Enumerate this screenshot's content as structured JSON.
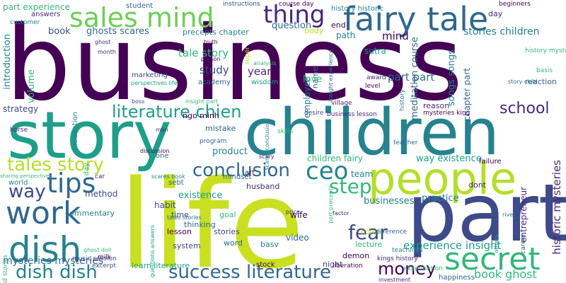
{
  "palette": {
    "purple": "#440154",
    "deep": "#482878",
    "indigo": "#3e4a89",
    "blue": "#31688e",
    "teal": "#26828e",
    "green": "#1f9e89",
    "emerald": "#35b779",
    "lime": "#6ece58",
    "yellowgreen": "#b5de2b",
    "yellow": "#fde725"
  },
  "words": {
    "business": "business",
    "story": "story",
    "children": "children",
    "life": "life",
    "part": "part",
    "people": "people",
    "fairy_tale": "fairy tale",
    "sales_mind": "sales mind",
    "thing": "thing",
    "dish": "dish",
    "work": "work",
    "secret": "secret",
    "tips": "tips",
    "way": "way",
    "tales_story": "tales story",
    "literature_chien": "literature chien",
    "conclusion": "conclusion",
    "ceo": "ceo",
    "step": "step",
    "fear": "fear",
    "money": "money",
    "success_literature": "success literature",
    "dish_dish": "dish dish",
    "school": "school",
    "book_ghost": "book ghost",
    "experience_insight": "experience insight",
    "stories_children": "stories children",
    "mysteries_mysteries": "mysteries mysteries",
    "historic_mysteries": "historic mysteries",
    "part_experience": "part experience",
    "question": "question",
    "book": "book",
    "ghosts_scares": "ghosts scares",
    "precepts_chapter": "precepts chapter",
    "tale_story": "tale story",
    "minh_academy": "minh academy",
    "study": "study",
    "year": "year",
    "strategy": "strategy",
    "introduction": "introduction",
    "volume": "volume",
    "history_historic": "history historic",
    "student": "student",
    "answers": "answers",
    "customer": "customer",
    "instructions": "instructions",
    "course_day": "course day",
    "day": "day",
    "beginners": "beginners",
    "end": "end",
    "path": "path",
    "sutra": "sutra",
    "body": "body",
    "meditation_course": "meditation course",
    "mind": "mind",
    "songs_songs": "songs songs",
    "chapter_part": "chapter part",
    "history_mysteries": "history mysteries",
    "employee": "employee",
    "name": "name",
    "love": "love",
    "part_part": "part part",
    "reaction": "reaction",
    "basis": "basis",
    "story_child": "story child",
    "marketing": "marketing",
    "academy": "academy",
    "wisdom": "wisdom",
    "insight_part": "insight part",
    "reason": "reason",
    "mysteries_king": "mysteries king",
    "desire": "desire",
    "business_lesson": "business lesson",
    "mistake": "mistake",
    "ngo_minh": "ngo minh",
    "boss": "boss",
    "team": "team",
    "children_fairy": "children fairy",
    "way_existence": "way existence",
    "horse": "horse",
    "meditation": "meditation",
    "day_v": "day",
    "product": "product",
    "one": "one",
    "man": "man",
    "mindset": "mindset",
    "husband": "husband",
    "art": "art",
    "method": "method",
    "habit": "habit",
    "existence": "existence",
    "businesses": "businesses",
    "practice": "practice",
    "entrepreneur": "entrepreneur",
    "dont": "dont",
    "failure": "failure",
    "skills": "skills",
    "teacher": "teacher",
    "world": "world",
    "sebt": "sebt",
    "time": "time",
    "wife": "wife",
    "commentary": "commentary",
    "goal": "goal",
    "thinking": "thinking",
    "lesson": "lesson",
    "stories": "stories",
    "word": "word",
    "video": "video",
    "lecture": "lecture",
    "home": "home",
    "demon": "demon",
    "night": "night",
    "system": "system",
    "stock": "stock",
    "music_session": "music session",
    "learn_literature": "learn literature",
    "happiness": "happiness",
    "liberation": "liberation",
    "investment": "investment",
    "sharing_perspectives": "sharing perspectives",
    "perspectives_life": "perspectives life",
    "scares_book": "scares book",
    "tales_stories": "tales stories",
    "ghost_doll": "ghost doll",
    "milk": "milk",
    "excerpt": "excerpt",
    "read_stories": "read stories",
    "difference": "difference",
    "price": "price",
    "factor": "factor",
    "basv": "basv",
    "kings_history": "kings history",
    "teachings": "teachings",
    "examination": "examination",
    "river": "river",
    "career": "career",
    "others": "others",
    "scary": "scary",
    "discussion": "discussion",
    "program": "program",
    "village": "village",
    "award": "award",
    "level": "level",
    "super": "super",
    "truth": "truth",
    "analysis": "analysis",
    "person": "person",
    "ghost": "ghost",
    "month": "month",
    "insight_experience": "insight experience",
    "history_v": "history",
    "car": "car",
    "questions_answers": "questions answers",
    "part_precepts": "part precepts",
    "scares_conclusion": "scares conclusion"
  }
}
